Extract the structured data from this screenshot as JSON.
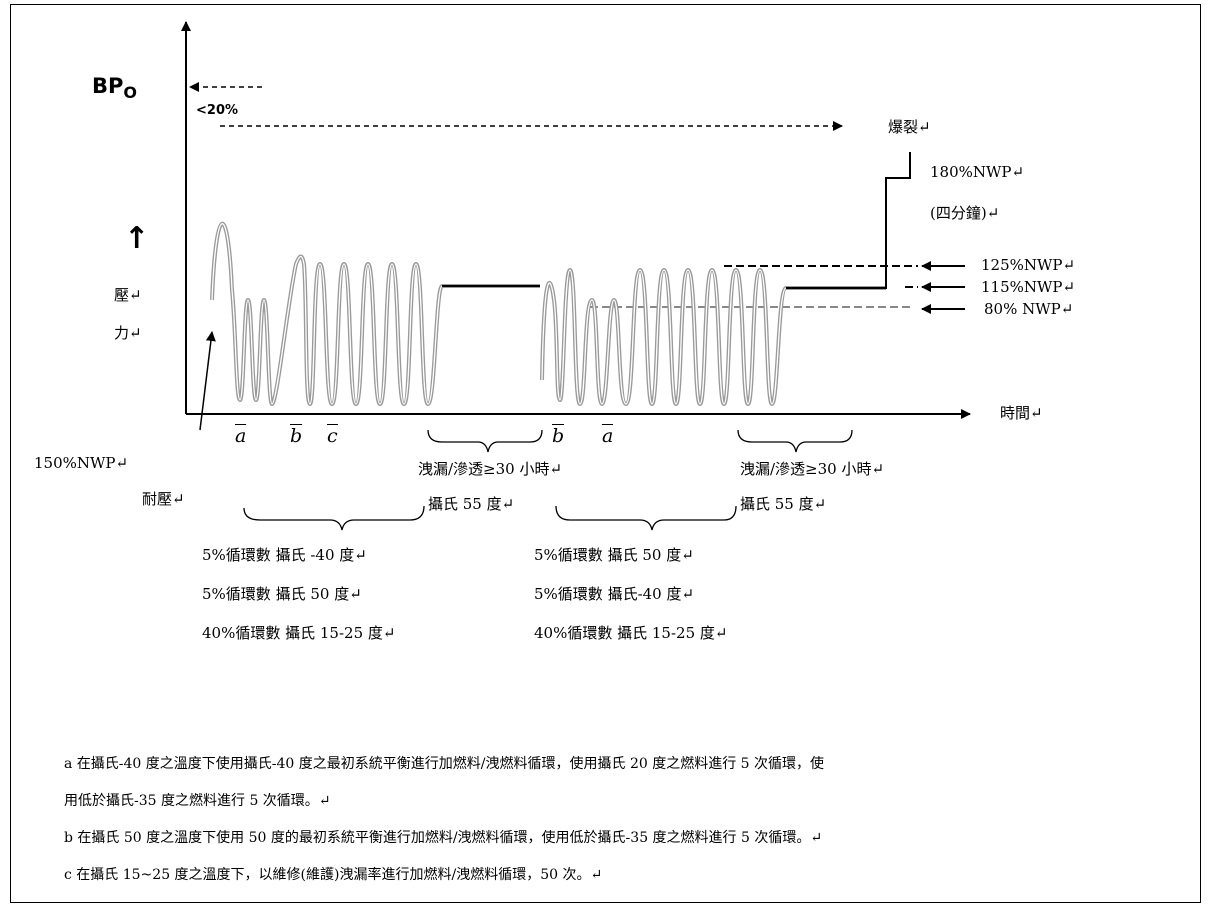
{
  "bp_main": "BP",
  "bp_sub": "O",
  "lt20": "<20%",
  "burst": "爆裂↵",
  "nwp180": "180%NWP↵",
  "four_min": "(四分鐘)↵",
  "nwp125": "125%NWP↵",
  "nwp115": "115%NWP↵",
  "nwp80": "80% NWP↵",
  "pressure_arrow": "↑",
  "pressure_1": "壓↵",
  "pressure_2": "力↵",
  "time": "時間↵",
  "nwp150": "150%NWP↵",
  "endurance": "耐壓↵",
  "marks": {
    "a1": "a",
    "b1": "b",
    "c1": "c",
    "b2": "b",
    "a2": "a"
  },
  "leak1": "洩漏/滲透≥30 小時↵",
  "leak1_temp": "攝氏 55 度↵",
  "leak2": "洩漏/滲透≥30 小時↵",
  "leak2_temp": "攝氏 55 度↵",
  "group1": [
    "5%循環數 攝氏 -40 度↵",
    "5%循環數 攝氏 50 度↵",
    "40%循環數 攝氏 15-25 度↵"
  ],
  "group2": [
    "5%循環數 攝氏 50 度↵",
    "5%循環數 攝氏-40 度↵",
    "40%循環數 攝氏 15-25 度↵"
  ],
  "notes": [
    "a 在攝氏-40 度之溫度下使用攝氏-40 度之最初系統平衡進行加燃料/洩燃料循環，使用攝氏 20 度之燃料進行 5 次循環，使",
    "用低於攝氏-35 度之燃料進行 5 次循環。↵",
    "b 在攝氏 50 度之溫度下使用 50 度的最初系統平衡進行加燃料/洩燃料循環，使用低於攝氏-35 度之燃料進行 5 次循環。↵",
    "c 在攝氏 15~25 度之溫度下，以維修(維護)洩漏率進行加燃料/洩燃料循環，50 次。↵"
  ]
}
